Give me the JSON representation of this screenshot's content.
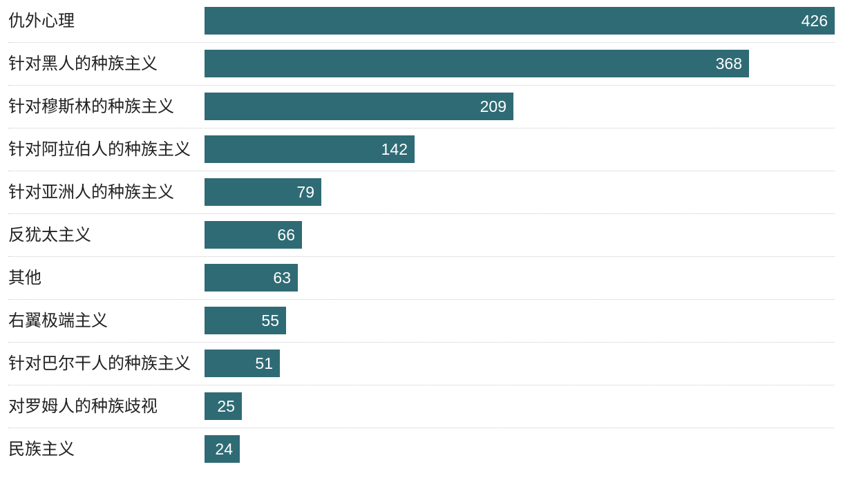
{
  "chart_data": {
    "type": "bar",
    "orientation": "horizontal",
    "categories": [
      "仇外心理",
      "针对黑人的种族主义",
      "针对穆斯林的种族主义",
      "针对阿拉伯人的种族主义",
      "针对亚洲人的种族主义",
      "反犹太主义",
      "其他",
      "右翼极端主义",
      "针对巴尔干人的种族主义",
      "对罗姆人的种族歧视",
      "民族主义"
    ],
    "values": [
      426,
      368,
      209,
      142,
      79,
      66,
      63,
      55,
      51,
      25,
      24
    ],
    "title": "",
    "xlabel": "",
    "ylabel": "",
    "xlim": [
      0,
      426
    ],
    "grid": false,
    "bar_color": "#2f6b75",
    "value_label_color": "#ffffff",
    "divider_color": "#c8c8c8"
  }
}
